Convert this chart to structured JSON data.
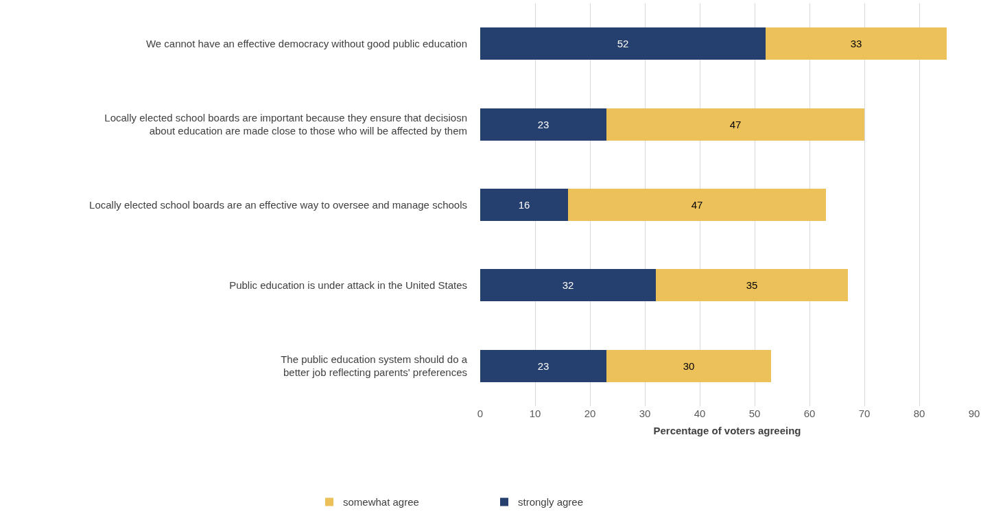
{
  "chart_data": {
    "type": "bar",
    "orientation": "horizontal",
    "stacked": true,
    "categories": [
      "We cannot have an effective democracy without good public education",
      "Locally elected school boards are important because they ensure that decisiosn about education are made close to those who will be affected by them",
      "Locally elected school boards are an effective way to oversee and manage schools",
      "Public education is under attack in the United States",
      "The public education system should do a better job reflecting parents' preferences"
    ],
    "series": [
      {
        "name": "strongly agree",
        "color": "#253f6e",
        "values": [
          52,
          23,
          16,
          32,
          23
        ]
      },
      {
        "name": "somewhat agree",
        "color": "#ecc15a",
        "values": [
          33,
          47,
          47,
          35,
          30
        ]
      }
    ],
    "xlabel": "Percentage of voters agreeing",
    "xlim": [
      0,
      90
    ],
    "xticks": [
      0,
      10,
      20,
      30,
      40,
      50,
      60,
      70,
      80,
      90
    ],
    "grid": "x",
    "legend": "bottom",
    "data_labels": true
  }
}
